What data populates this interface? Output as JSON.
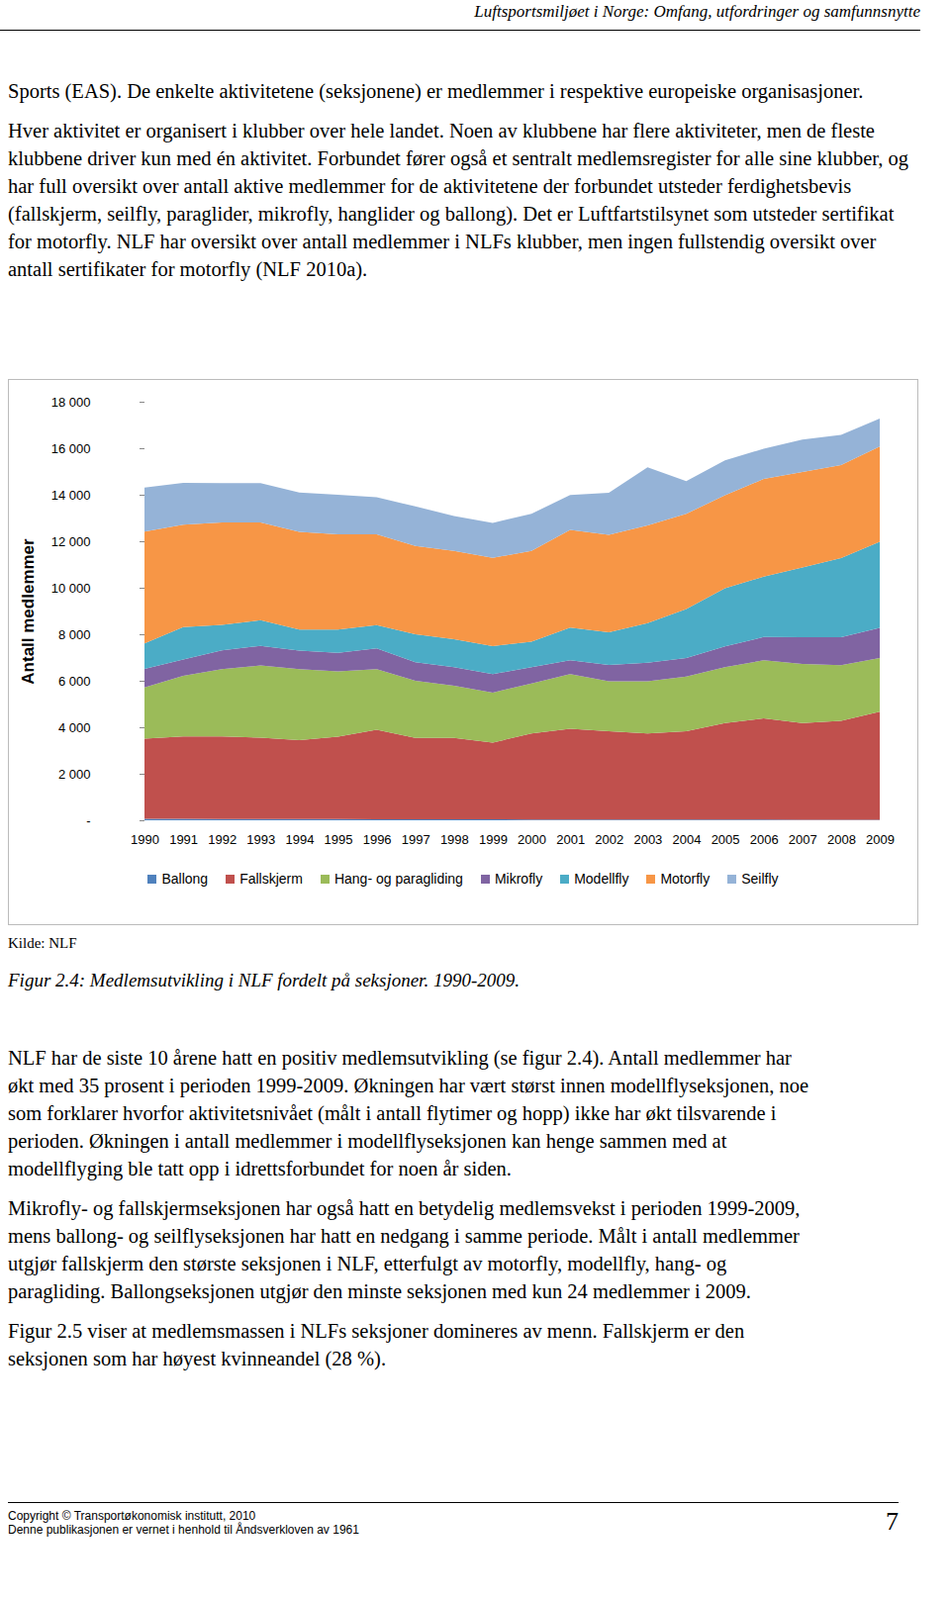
{
  "header": "Luftsportsmiljøet i Norge: Omfang, utfordringer og samfunnsnytte",
  "paragraphs_before": [
    "Sports (EAS). De enkelte aktivitetene (seksjonene) er medlemmer i respektive europeiske organisasjoner.",
    "Hver aktivitet er organisert i klubber over hele landet. Noen av klubbene har flere aktiviteter, men de fleste klubbene driver kun med én aktivitet. Forbundet fører også et sentralt medlemsregister for alle sine klubber, og har full oversikt over antall aktive medlemmer for de aktivitetene der forbundet utsteder ferdighetsbevis (fallskjerm, seilfly, paraglider, mikrofly, hanglider og ballong). Det er Luftfartstilsynet som utsteder sertifikat for motorfly. NLF har oversikt over antall medlemmer i NLFs klubber, men ingen fullstendig oversikt over antall sertifikater for motorfly (NLF 2010a)."
  ],
  "chart_data": {
    "type": "area",
    "stacked": true,
    "y_label": "Antall medlemmer",
    "x": [
      1990,
      1991,
      1992,
      1993,
      1994,
      1995,
      1996,
      1997,
      1998,
      1999,
      2000,
      2001,
      2002,
      2003,
      2004,
      2005,
      2006,
      2007,
      2008,
      2009
    ],
    "xlim": [
      1990,
      2009
    ],
    "xticks": [
      1990,
      1991,
      1992,
      1993,
      1994,
      1995,
      1996,
      1997,
      1998,
      1999,
      2000,
      2001,
      2002,
      2003,
      2004,
      2005,
      2006,
      2007,
      2008,
      2009
    ],
    "ylim": [
      0,
      18000
    ],
    "yticks": [
      {
        "value": 0,
        "label": "-"
      },
      {
        "value": 2000,
        "label": "2 000"
      },
      {
        "value": 4000,
        "label": "4 000"
      },
      {
        "value": 6000,
        "label": "6 000"
      },
      {
        "value": 8000,
        "label": "8 000"
      },
      {
        "value": 10000,
        "label": "10 000"
      },
      {
        "value": 12000,
        "label": "12 000"
      },
      {
        "value": 14000,
        "label": "14 000"
      },
      {
        "value": 16000,
        "label": "16 000"
      },
      {
        "value": 18000,
        "label": "18 000"
      }
    ],
    "grid": false,
    "legend": "bottom",
    "series": [
      {
        "name": "Ballong",
        "color": "#4f81bd",
        "values": [
          60,
          60,
          55,
          55,
          50,
          50,
          45,
          45,
          40,
          40,
          35,
          35,
          30,
          30,
          30,
          30,
          28,
          26,
          25,
          24
        ]
      },
      {
        "name": "Fallskjerm",
        "color": "#c0504d",
        "values": [
          3450,
          3550,
          3550,
          3500,
          3400,
          3550,
          3850,
          3500,
          3500,
          3300,
          3700,
          3900,
          3800,
          3700,
          3800,
          4150,
          4350,
          4150,
          4250,
          4650
        ]
      },
      {
        "name": "Hang- og paragliding",
        "color": "#9bbb59",
        "values": [
          2200,
          2600,
          2900,
          3100,
          3050,
          2800,
          2600,
          2450,
          2250,
          2150,
          2150,
          2350,
          2150,
          2250,
          2350,
          2400,
          2500,
          2550,
          2400,
          2300
        ]
      },
      {
        "name": "Mikrofly",
        "color": "#8064a2",
        "values": [
          800,
          700,
          800,
          850,
          800,
          800,
          900,
          800,
          800,
          800,
          700,
          600,
          700,
          800,
          800,
          900,
          1000,
          1150,
          1200,
          1300
        ]
      },
      {
        "name": "Modellfly",
        "color": "#4bacc6",
        "values": [
          1100,
          1400,
          1100,
          1100,
          900,
          1000,
          1000,
          1200,
          1200,
          1200,
          1100,
          1400,
          1400,
          1700,
          2100,
          2500,
          2600,
          3000,
          3400,
          3700
        ]
      },
      {
        "name": "Motorfly",
        "color": "#f79646",
        "values": [
          4800,
          4400,
          4400,
          4200,
          4200,
          4100,
          3900,
          3800,
          3800,
          3800,
          3900,
          4200,
          4200,
          4200,
          4100,
          4000,
          4200,
          4100,
          4000,
          4100
        ]
      },
      {
        "name": "Seilfly",
        "color": "#95b3d7",
        "values": [
          1900,
          1800,
          1700,
          1700,
          1700,
          1700,
          1600,
          1700,
          1500,
          1500,
          1600,
          1500,
          1800,
          2500,
          1400,
          1500,
          1300,
          1400,
          1300,
          1200
        ]
      }
    ]
  },
  "source": "Kilde: NLF",
  "caption": "Figur 2.4: Medlemsutvikling i NLF fordelt på seksjoner. 1990-2009.",
  "paragraphs_after": [
    "NLF har de siste 10 årene hatt en positiv medlemsutvikling (se figur 2.4). Antall medlemmer har økt med 35 prosent i perioden 1999-2009. Økningen har vært størst innen modellflyseksjonen, noe som forklarer hvorfor aktivitetsnivået (målt i antall flytimer og hopp) ikke har økt tilsvarende i perioden. Økningen i antall medlemmer i modellflyseksjonen kan henge sammen med at modellflyging ble tatt opp i idrettsforbundet for noen år siden.",
    "Mikrofly- og fallskjermseksjonen har også hatt en betydelig medlemsvekst i perioden 1999-2009, mens ballong- og seilflyseksjonen har hatt en nedgang i samme periode. Målt i antall medlemmer utgjør fallskjerm den største seksjonen i NLF, etterfulgt av motorfly, modellfly, hang- og paragliding. Ballongseksjonen utgjør den minste seksjonen med kun 24 medlemmer i 2009.",
    "Figur 2.5 viser at medlemsmassen i NLFs seksjoner domineres av menn. Fallskjerm er den seksjonen som har høyest kvinneandel (28 %)."
  ],
  "footer": {
    "copyright": "Copyright © Transportøkonomisk institutt, 2010",
    "notice": "Denne publikasjonen er vernet i henhold til Åndsverkloven av 1961",
    "page": 7
  }
}
